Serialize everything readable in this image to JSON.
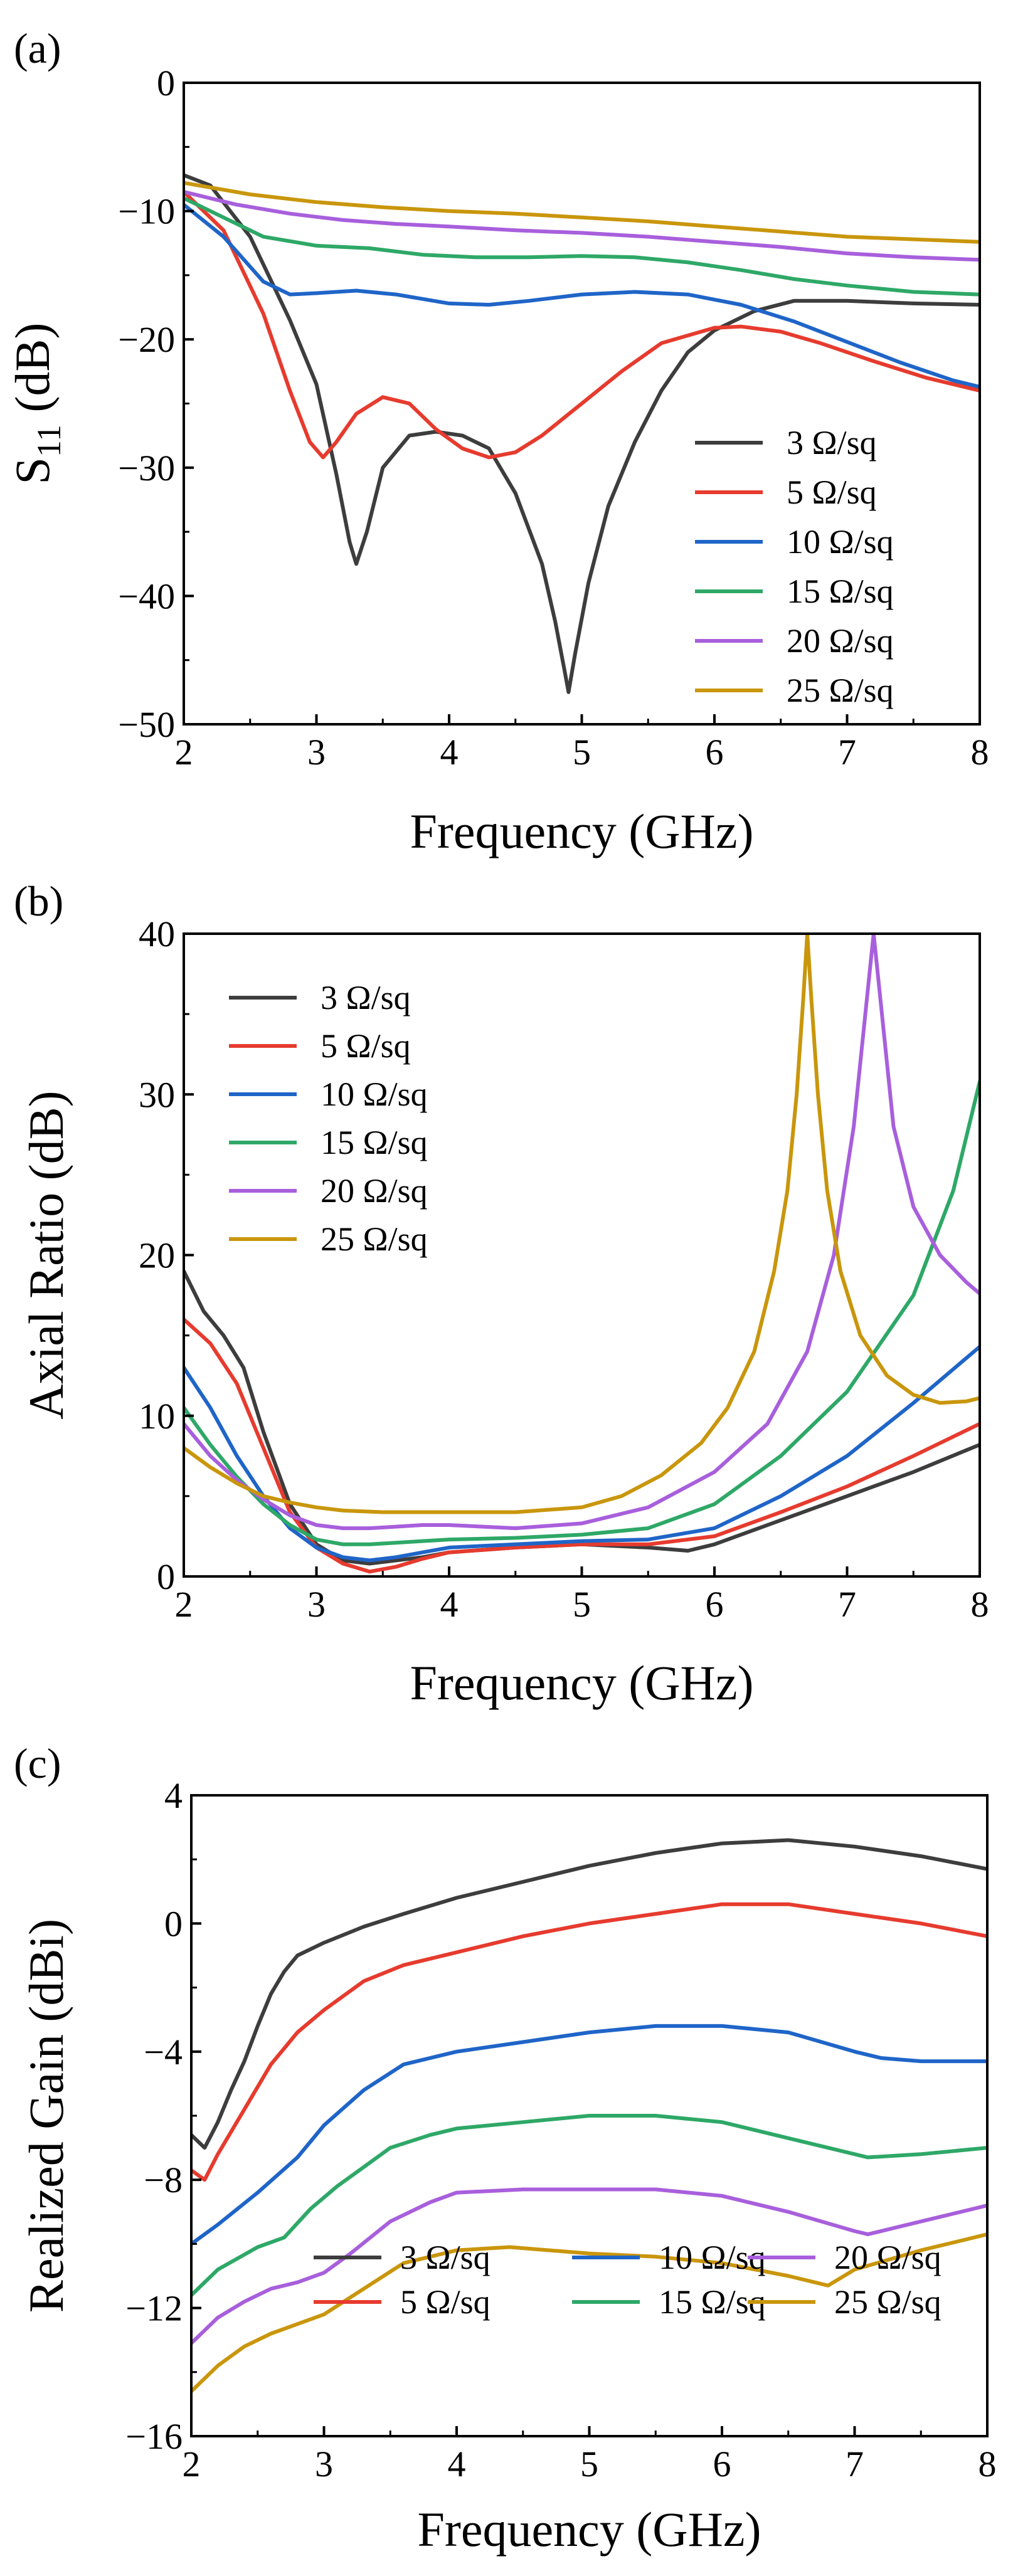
{
  "figure": {
    "panels": [
      "(a)",
      "(b)",
      "(c)"
    ]
  },
  "chart_data": [
    {
      "panel_label": "(a)",
      "type": "line",
      "title": "",
      "xlabel": "Frequency (GHz)",
      "ylabel_main": "S",
      "ylabel_sub": "11",
      "ylabel_suffix": " (dB)",
      "xlim": [
        2,
        8
      ],
      "ylim": [
        -50,
        0
      ],
      "xticks": [
        2,
        3,
        4,
        5,
        6,
        7,
        8
      ],
      "yticks": [
        0,
        -10,
        -20,
        -30,
        -40,
        -50
      ],
      "xtick_labels": [
        "2",
        "3",
        "4",
        "5",
        "6",
        "7",
        "8"
      ],
      "ytick_labels": [
        "0",
        "−10",
        "−20",
        "−30",
        "−40",
        "−50"
      ],
      "legend_location": "lower-right",
      "series": [
        {
          "name": "3 Ω/sq",
          "color": "#3d3d3d",
          "x": [
            2.0,
            2.2,
            2.5,
            2.8,
            3.0,
            3.15,
            3.25,
            3.3,
            3.38,
            3.5,
            3.7,
            3.9,
            4.1,
            4.3,
            4.5,
            4.7,
            4.8,
            4.87,
            4.9,
            4.95,
            5.05,
            5.2,
            5.4,
            5.6,
            5.8,
            6.0,
            6.3,
            6.6,
            7.0,
            7.5,
            8.0
          ],
          "y": [
            -7.2,
            -8.0,
            -12.0,
            -18.5,
            -23.5,
            -30.5,
            -35.8,
            -37.5,
            -35.0,
            -30.0,
            -27.5,
            -27.2,
            -27.5,
            -28.5,
            -32.0,
            -37.5,
            -42.0,
            -45.8,
            -47.5,
            -44.5,
            -39.0,
            -33.0,
            -28.0,
            -24.0,
            -21.0,
            -19.3,
            -17.8,
            -17.0,
            -17.0,
            -17.2,
            -17.3
          ]
        },
        {
          "name": "5 Ω/sq",
          "color": "#e63b2e",
          "x": [
            2.0,
            2.3,
            2.6,
            2.8,
            2.95,
            3.05,
            3.15,
            3.3,
            3.5,
            3.7,
            3.9,
            4.1,
            4.3,
            4.5,
            4.7,
            5.0,
            5.3,
            5.6,
            6.0,
            6.2,
            6.5,
            6.8,
            7.2,
            7.6,
            8.0
          ],
          "y": [
            -8.5,
            -11.5,
            -18.0,
            -24.0,
            -28.0,
            -29.2,
            -28.0,
            -25.8,
            -24.5,
            -25.0,
            -27.0,
            -28.5,
            -29.2,
            -28.8,
            -27.5,
            -25.0,
            -22.5,
            -20.3,
            -19.1,
            -19.0,
            -19.4,
            -20.3,
            -21.7,
            -23.0,
            -24.0
          ]
        },
        {
          "name": "10 Ω/sq",
          "color": "#1f65c8",
          "x": [
            2.0,
            2.3,
            2.6,
            2.8,
            3.0,
            3.3,
            3.6,
            4.0,
            4.3,
            4.6,
            5.0,
            5.4,
            5.8,
            6.2,
            6.6,
            7.0,
            7.4,
            7.8,
            8.0
          ],
          "y": [
            -9.5,
            -12.0,
            -15.5,
            -16.5,
            -16.4,
            -16.2,
            -16.5,
            -17.2,
            -17.3,
            -17.0,
            -16.5,
            -16.3,
            -16.5,
            -17.3,
            -18.6,
            -20.2,
            -21.8,
            -23.2,
            -23.7
          ]
        },
        {
          "name": "15 Ω/sq",
          "color": "#2ea867",
          "x": [
            2.0,
            2.3,
            2.6,
            3.0,
            3.4,
            3.8,
            4.2,
            4.6,
            5.0,
            5.4,
            5.8,
            6.2,
            6.6,
            7.0,
            7.5,
            8.0
          ],
          "y": [
            -9.0,
            -10.5,
            -12.0,
            -12.7,
            -12.9,
            -13.4,
            -13.6,
            -13.6,
            -13.5,
            -13.6,
            -14.0,
            -14.6,
            -15.3,
            -15.8,
            -16.3,
            -16.5
          ]
        },
        {
          "name": "20 Ω/sq",
          "color": "#a85fdc",
          "x": [
            2.0,
            2.4,
            2.8,
            3.2,
            3.6,
            4.0,
            4.5,
            5.0,
            5.5,
            6.0,
            6.5,
            7.0,
            7.5,
            8.0
          ],
          "y": [
            -8.5,
            -9.5,
            -10.2,
            -10.7,
            -11.0,
            -11.2,
            -11.5,
            -11.7,
            -12.0,
            -12.4,
            -12.8,
            -13.3,
            -13.6,
            -13.8
          ]
        },
        {
          "name": "25 Ω/sq",
          "color": "#c9960c",
          "x": [
            2.0,
            2.5,
            3.0,
            3.5,
            4.0,
            4.5,
            5.0,
            5.5,
            6.0,
            6.5,
            7.0,
            7.5,
            8.0
          ],
          "y": [
            -7.8,
            -8.7,
            -9.3,
            -9.7,
            -10.0,
            -10.2,
            -10.5,
            -10.8,
            -11.2,
            -11.6,
            -12.0,
            -12.2,
            -12.4
          ]
        }
      ]
    },
    {
      "panel_label": "(b)",
      "type": "line",
      "title": "",
      "xlabel": "Frequency (GHz)",
      "ylabel": "Axial Ratio (dB)",
      "xlim": [
        2,
        8
      ],
      "ylim": [
        0,
        40
      ],
      "xticks": [
        2,
        3,
        4,
        5,
        6,
        7,
        8
      ],
      "yticks": [
        0,
        10,
        20,
        30,
        40
      ],
      "xtick_labels": [
        "2",
        "3",
        "4",
        "5",
        "6",
        "7",
        "8"
      ],
      "ytick_labels": [
        "0",
        "10",
        "20",
        "30",
        "40"
      ],
      "legend_location": "top-left",
      "series": [
        {
          "name": "3 Ω/sq",
          "color": "#3d3d3d",
          "x": [
            2.0,
            2.15,
            2.3,
            2.45,
            2.6,
            2.8,
            3.0,
            3.2,
            3.4,
            3.6,
            3.8,
            4.0,
            4.5,
            5.0,
            5.5,
            5.8,
            6.0,
            6.5,
            7.0,
            7.5,
            8.0
          ],
          "y": [
            19.0,
            16.5,
            15.0,
            13.0,
            9.0,
            4.5,
            2.0,
            1.0,
            0.8,
            1.0,
            1.2,
            1.5,
            1.8,
            2.0,
            1.8,
            1.6,
            2.0,
            3.5,
            5.0,
            6.5,
            8.2
          ]
        },
        {
          "name": "5 Ω/sq",
          "color": "#e63b2e",
          "x": [
            2.0,
            2.2,
            2.4,
            2.6,
            2.8,
            3.0,
            3.2,
            3.4,
            3.6,
            3.8,
            4.0,
            4.5,
            5.0,
            5.5,
            6.0,
            6.5,
            7.0,
            7.5,
            8.0
          ],
          "y": [
            16.0,
            14.5,
            12.0,
            8.0,
            4.0,
            1.8,
            0.8,
            0.3,
            0.6,
            1.1,
            1.5,
            1.8,
            2.0,
            2.0,
            2.5,
            4.0,
            5.6,
            7.5,
            9.5
          ]
        },
        {
          "name": "10 Ω/sq",
          "color": "#1f65c8",
          "x": [
            2.0,
            2.2,
            2.4,
            2.6,
            2.8,
            3.0,
            3.2,
            3.4,
            3.6,
            3.8,
            4.0,
            4.5,
            5.0,
            5.5,
            6.0,
            6.5,
            7.0,
            7.5,
            8.0
          ],
          "y": [
            13.0,
            10.5,
            7.5,
            5.0,
            3.0,
            1.8,
            1.2,
            1.0,
            1.2,
            1.5,
            1.8,
            2.0,
            2.2,
            2.3,
            3.0,
            5.0,
            7.5,
            10.8,
            14.3
          ]
        },
        {
          "name": "15 Ω/sq",
          "color": "#2ea867",
          "x": [
            2.0,
            2.2,
            2.4,
            2.6,
            2.8,
            3.0,
            3.2,
            3.4,
            3.6,
            3.8,
            4.0,
            4.5,
            5.0,
            5.5,
            6.0,
            6.5,
            7.0,
            7.5,
            7.8,
            8.0
          ],
          "y": [
            10.5,
            8.2,
            6.2,
            4.5,
            3.2,
            2.3,
            2.0,
            2.0,
            2.1,
            2.2,
            2.3,
            2.4,
            2.6,
            3.0,
            4.5,
            7.5,
            11.5,
            17.5,
            24.0,
            30.8
          ]
        },
        {
          "name": "20 Ω/sq",
          "color": "#a85fdc",
          "x": [
            2.0,
            2.2,
            2.4,
            2.6,
            2.8,
            3.0,
            3.2,
            3.4,
            3.6,
            3.8,
            4.0,
            4.5,
            5.0,
            5.5,
            6.0,
            6.4,
            6.7,
            6.9,
            7.05,
            7.15,
            7.2,
            7.25,
            7.35,
            7.5,
            7.7,
            7.9,
            8.0
          ],
          "y": [
            9.5,
            7.5,
            6.0,
            4.8,
            3.8,
            3.2,
            3.0,
            3.0,
            3.1,
            3.2,
            3.2,
            3.0,
            3.3,
            4.3,
            6.5,
            9.5,
            14.0,
            20.0,
            28.0,
            36.0,
            40.0,
            36.0,
            28.0,
            23.0,
            20.0,
            18.3,
            17.6
          ]
        },
        {
          "name": "25 Ω/sq",
          "color": "#c9960c",
          "x": [
            2.0,
            2.2,
            2.4,
            2.6,
            2.8,
            3.0,
            3.2,
            3.5,
            4.0,
            4.5,
            5.0,
            5.3,
            5.6,
            5.9,
            6.1,
            6.3,
            6.45,
            6.55,
            6.62,
            6.67,
            6.7,
            6.73,
            6.78,
            6.85,
            6.95,
            7.1,
            7.3,
            7.5,
            7.7,
            7.9,
            8.0
          ],
          "y": [
            8.0,
            6.8,
            5.8,
            5.0,
            4.6,
            4.3,
            4.1,
            4.0,
            4.0,
            4.0,
            4.3,
            5.0,
            6.3,
            8.3,
            10.5,
            14.0,
            19.0,
            24.0,
            30.0,
            36.0,
            40.0,
            36.0,
            30.0,
            24.0,
            19.0,
            15.0,
            12.5,
            11.3,
            10.8,
            10.9,
            11.1
          ]
        }
      ]
    },
    {
      "panel_label": "(c)",
      "type": "line",
      "title": "",
      "xlabel": "Frequency (GHz)",
      "ylabel": "Realized Gain (dBi)",
      "xlim": [
        2,
        8
      ],
      "ylim": [
        -16,
        4
      ],
      "xticks": [
        2,
        3,
        4,
        5,
        6,
        7,
        8
      ],
      "yticks": [
        4,
        0,
        -4,
        -8,
        -12,
        -16
      ],
      "xtick_labels": [
        "2",
        "3",
        "4",
        "5",
        "6",
        "7",
        "8"
      ],
      "ytick_labels": [
        "4",
        "0",
        "−4",
        "−8",
        "−12",
        "−16"
      ],
      "legend_location": "bottom",
      "series": [
        {
          "name": "3 Ω/sq",
          "color": "#3d3d3d",
          "x": [
            2.0,
            2.1,
            2.2,
            2.3,
            2.4,
            2.5,
            2.6,
            2.7,
            2.8,
            3.0,
            3.3,
            3.6,
            4.0,
            4.5,
            5.0,
            5.5,
            6.0,
            6.5,
            7.0,
            7.5,
            8.0
          ],
          "y": [
            -6.6,
            -7.0,
            -6.2,
            -5.2,
            -4.3,
            -3.2,
            -2.2,
            -1.5,
            -1.0,
            -0.6,
            -0.1,
            0.3,
            0.8,
            1.3,
            1.8,
            2.2,
            2.5,
            2.6,
            2.4,
            2.1,
            1.7
          ]
        },
        {
          "name": "5 Ω/sq",
          "color": "#e63b2e",
          "x": [
            2.0,
            2.1,
            2.2,
            2.4,
            2.6,
            2.8,
            3.0,
            3.3,
            3.6,
            4.0,
            4.5,
            5.0,
            5.5,
            6.0,
            6.5,
            7.0,
            7.5,
            8.0
          ],
          "y": [
            -7.7,
            -8.0,
            -7.2,
            -5.8,
            -4.4,
            -3.4,
            -2.7,
            -1.8,
            -1.3,
            -0.9,
            -0.4,
            0.0,
            0.3,
            0.6,
            0.6,
            0.3,
            0.0,
            -0.4
          ]
        },
        {
          "name": "10 Ω/sq",
          "color": "#1f65c8",
          "x": [
            2.0,
            2.2,
            2.5,
            2.8,
            3.0,
            3.3,
            3.6,
            4.0,
            4.5,
            5.0,
            5.5,
            6.0,
            6.5,
            7.0,
            7.2,
            7.5,
            8.0
          ],
          "y": [
            -10.0,
            -9.4,
            -8.4,
            -7.3,
            -6.3,
            -5.2,
            -4.4,
            -4.0,
            -3.7,
            -3.4,
            -3.2,
            -3.2,
            -3.4,
            -4.0,
            -4.2,
            -4.3,
            -4.3
          ]
        },
        {
          "name": "15 Ω/sq",
          "color": "#2ea867",
          "x": [
            2.0,
            2.2,
            2.5,
            2.7,
            2.9,
            3.1,
            3.3,
            3.5,
            3.8,
            4.0,
            4.5,
            5.0,
            5.5,
            6.0,
            6.5,
            7.0,
            7.1,
            7.5,
            8.0
          ],
          "y": [
            -11.6,
            -10.8,
            -10.1,
            -9.8,
            -8.9,
            -8.2,
            -7.6,
            -7.0,
            -6.6,
            -6.4,
            -6.2,
            -6.0,
            -6.0,
            -6.2,
            -6.7,
            -7.2,
            -7.3,
            -7.2,
            -7.0
          ]
        },
        {
          "name": "20 Ω/sq",
          "color": "#a85fdc",
          "x": [
            2.0,
            2.2,
            2.4,
            2.6,
            2.8,
            3.0,
            3.2,
            3.5,
            3.8,
            4.0,
            4.5,
            5.0,
            5.5,
            6.0,
            6.5,
            7.0,
            7.1,
            7.5,
            8.0
          ],
          "y": [
            -13.1,
            -12.3,
            -11.8,
            -11.4,
            -11.2,
            -10.9,
            -10.3,
            -9.3,
            -8.7,
            -8.4,
            -8.3,
            -8.3,
            -8.3,
            -8.5,
            -9.0,
            -9.6,
            -9.7,
            -9.3,
            -8.8
          ]
        },
        {
          "name": "25 Ω/sq",
          "color": "#c9960c",
          "x": [
            2.0,
            2.2,
            2.4,
            2.6,
            2.8,
            3.0,
            3.3,
            3.6,
            4.0,
            4.4,
            5.0,
            5.5,
            6.0,
            6.5,
            6.8,
            7.0,
            7.5,
            8.0
          ],
          "y": [
            -14.6,
            -13.8,
            -13.2,
            -12.8,
            -12.5,
            -12.2,
            -11.4,
            -10.6,
            -10.2,
            -10.1,
            -10.3,
            -10.4,
            -10.6,
            -11.0,
            -11.3,
            -10.8,
            -10.2,
            -9.7
          ]
        }
      ]
    }
  ]
}
